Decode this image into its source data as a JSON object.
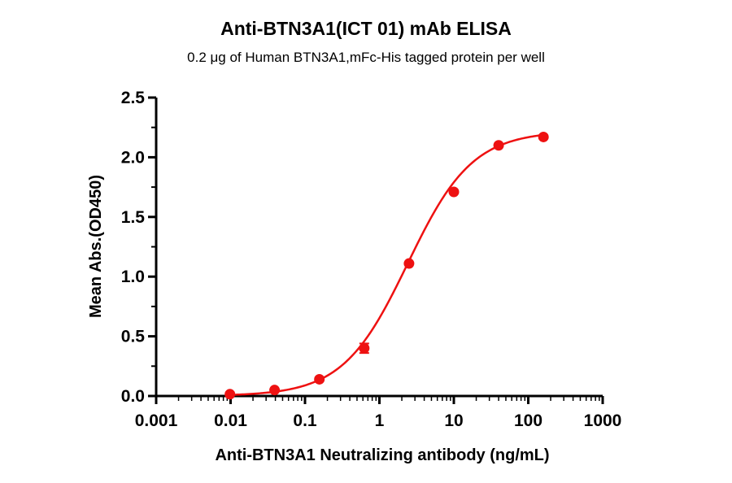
{
  "chart_data": {
    "type": "scatter",
    "title": "Anti-BTN3A1(ICT 01) mAb ELISA",
    "subtitle": "0.2 μg of Human BTN3A1,mFc-His tagged protein per well",
    "xlabel": "Anti-BTN3A1 Neutralizing antibody (ng/mL)",
    "ylabel": "Mean Abs.(OD450)",
    "xscale": "log",
    "xlim": [
      0.001,
      1000
    ],
    "ylim": [
      0,
      2.5
    ],
    "x_ticks": [
      0.001,
      0.01,
      0.1,
      1,
      10,
      100,
      1000
    ],
    "x_tick_labels": [
      "0.001",
      "0.01",
      "0.1",
      "1",
      "10",
      "100",
      "1000"
    ],
    "y_ticks": [
      0,
      0.5,
      1.0,
      1.5,
      2.0,
      2.5
    ],
    "y_tick_labels": [
      "0.0",
      "0.5",
      "1.0",
      "1.5",
      "2.0",
      "2.5"
    ],
    "color": "#ee1111",
    "series": [
      {
        "x": [
          0.0098,
          0.039,
          0.156,
          0.625,
          2.5,
          10,
          40,
          160
        ],
        "y": [
          0.015,
          0.05,
          0.14,
          0.4,
          1.11,
          1.71,
          2.1,
          2.17
        ],
        "error": [
          0,
          0,
          0,
          0.04,
          0,
          0,
          0,
          0
        ]
      }
    ],
    "fit": {
      "type": "4PL",
      "bottom": 0.0,
      "top": 2.22,
      "ec50": 2.4,
      "hill": 1.0
    }
  }
}
